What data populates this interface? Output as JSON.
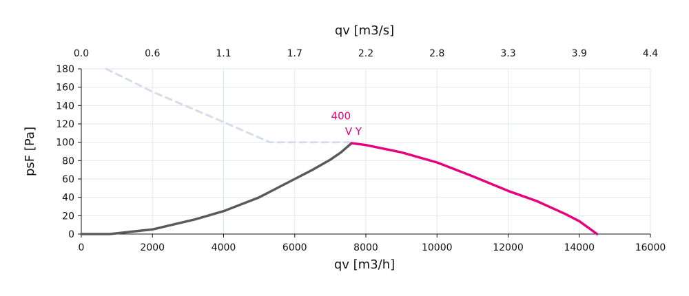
{
  "chart_data": {
    "type": "line",
    "title": "",
    "xlabel": "qv [m3/h]",
    "x2label": "qv [m3/s]",
    "ylabel": "psF [Pa]",
    "xlim": [
      0,
      16000
    ],
    "ylim": [
      0,
      180
    ],
    "x_ticks": [
      "0",
      "2000",
      "4000",
      "6000",
      "8000",
      "10000",
      "12000",
      "14000",
      "16000"
    ],
    "x2_ticks": [
      "0.0",
      "0.6",
      "1.1",
      "1.7",
      "2.2",
      "2.8",
      "3.3",
      "3.9",
      "4.4"
    ],
    "y_ticks": [
      "0",
      "20",
      "40",
      "60",
      "80",
      "100",
      "120",
      "140",
      "160",
      "180"
    ],
    "grid": true,
    "colors": {
      "grid": "#dfe6f3",
      "gray_curve": "#5a5a5a",
      "magenta_curve": "#e6007e",
      "dashed_curve": "#d6dde8",
      "axis": "#111111"
    },
    "series": [
      {
        "style": "dashed",
        "x": [
          700,
          2000,
          4000,
          5300,
          7600
        ],
        "y": [
          180,
          155,
          122,
          100,
          100
        ]
      },
      {
        "style": "solid-gray",
        "x": [
          0,
          800,
          2000,
          3200,
          4000,
          5000,
          6000,
          6500,
          7000,
          7300,
          7600
        ],
        "y": [
          0,
          0,
          5,
          16,
          25,
          40,
          60,
          70,
          81,
          89,
          99
        ]
      },
      {
        "style": "solid-magenta",
        "x": [
          7600,
          8000,
          9000,
          10000,
          11000,
          12000,
          12800,
          13200,
          13600,
          14000,
          14500
        ],
        "y": [
          99,
          97,
          89,
          78,
          63,
          47,
          36,
          29,
          22,
          14,
          0
        ]
      }
    ],
    "annotations": [
      {
        "text": "400",
        "x": 7300,
        "y": 125
      },
      {
        "text": "V Y",
        "x": 7650,
        "y": 108
      }
    ]
  }
}
